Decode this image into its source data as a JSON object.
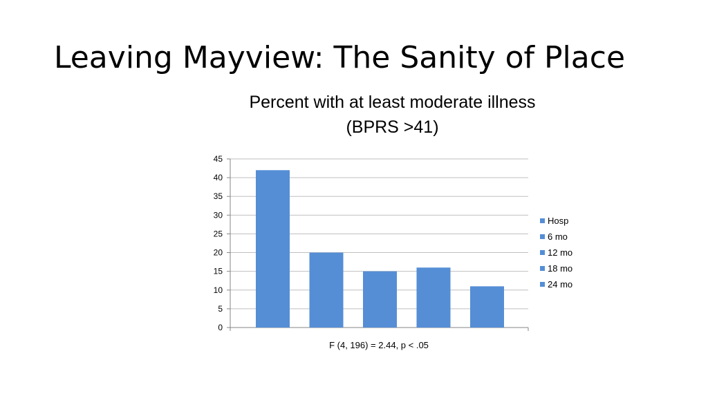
{
  "slide": {
    "title": "Leaving Mayview: The Sanity of Place"
  },
  "chart_data": {
    "type": "bar",
    "title_line1": "Percent with at least moderate illness",
    "title_line2": "(BPRS >41)",
    "xlabel": "F (4, 196) = 2.44, p < .05",
    "ylabel": "",
    "ylim": [
      0,
      45
    ],
    "yticks": [
      0,
      5,
      10,
      15,
      20,
      25,
      30,
      35,
      40,
      45
    ],
    "grid": true,
    "legend_position": "right",
    "bar_color": "#558ED5",
    "series": [
      {
        "name": "Hosp",
        "value": 42
      },
      {
        "name": "6 mo",
        "value": 20
      },
      {
        "name": "12 mo",
        "value": 15
      },
      {
        "name": "18 mo",
        "value": 16
      },
      {
        "name": "24 mo",
        "value": 11
      }
    ]
  }
}
